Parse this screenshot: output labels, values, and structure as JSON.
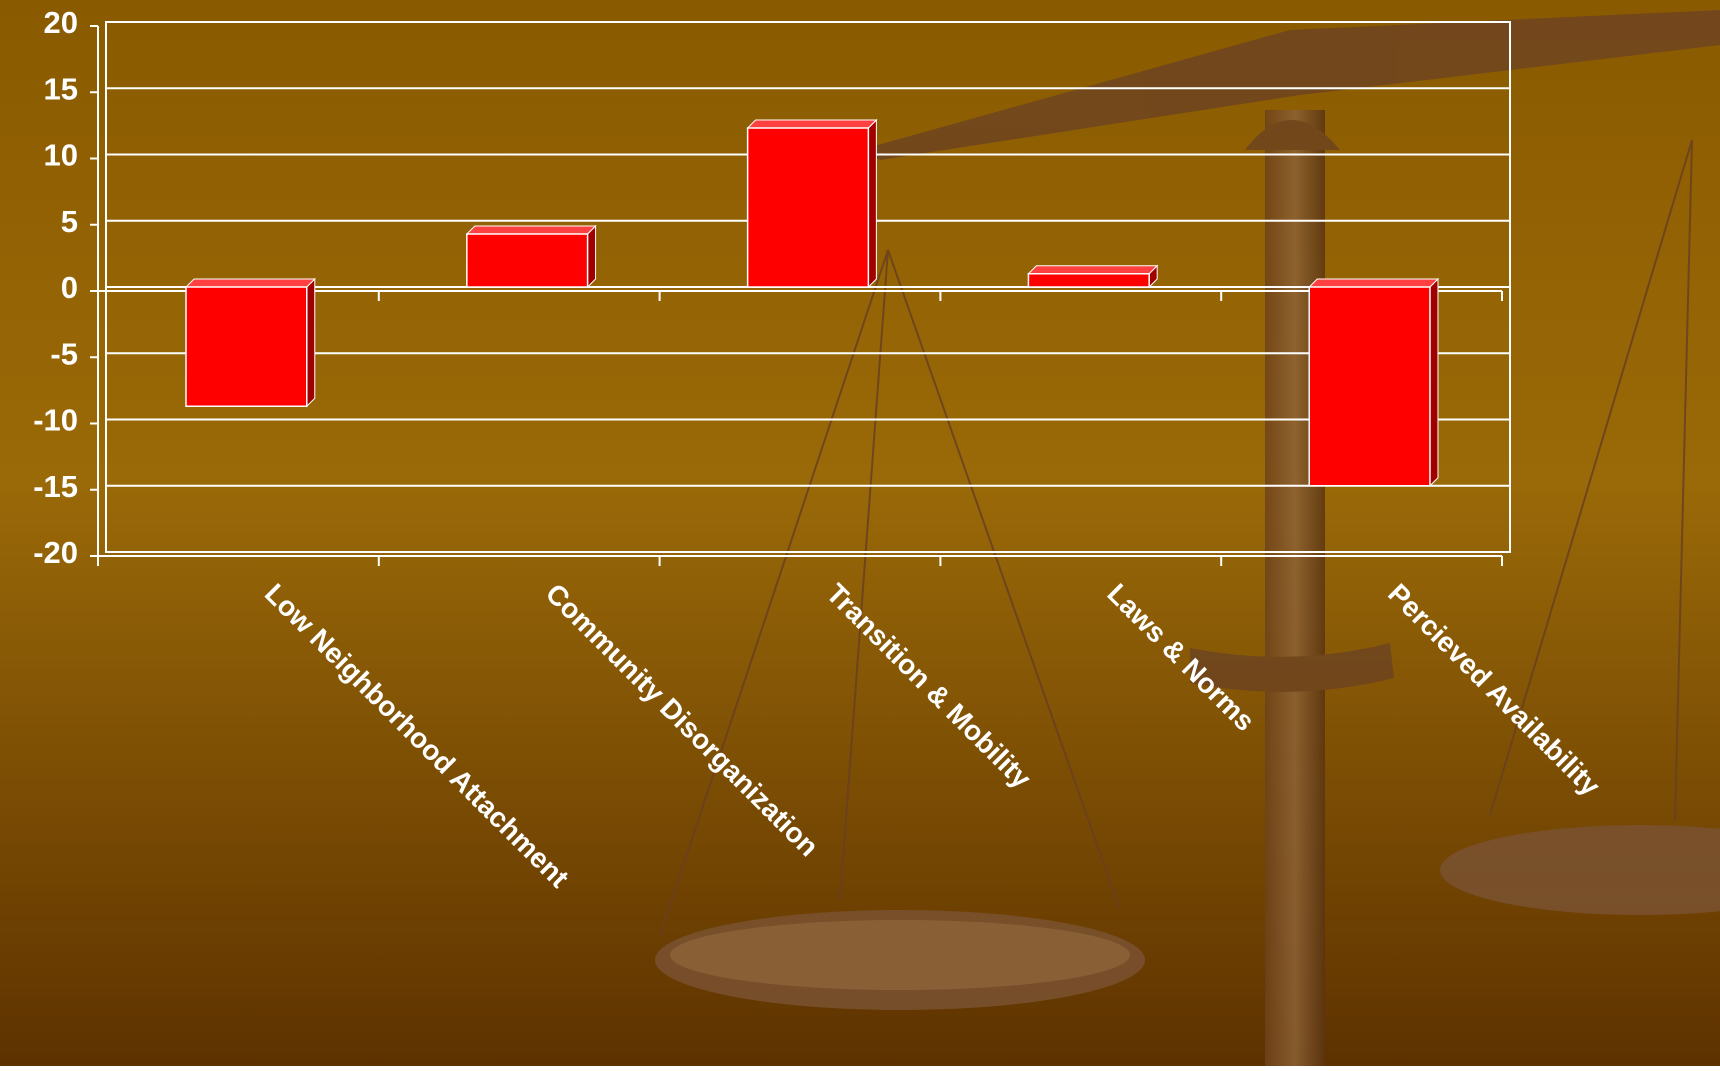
{
  "chart_data": {
    "type": "bar",
    "categories": [
      "Low Neighborhood Attachment",
      "Community Disorganization",
      "Transition & Mobility",
      "Laws & Norms",
      "Percieved Availability"
    ],
    "values": [
      -9,
      4,
      12,
      1,
      -15
    ],
    "color": "#ff0000",
    "ylim": [
      -20,
      20
    ],
    "yticks": [
      -20,
      -15,
      -10,
      -5,
      0,
      5,
      10,
      15,
      20
    ],
    "grid": true
  }
}
